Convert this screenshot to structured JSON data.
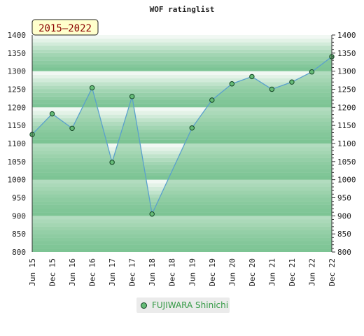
{
  "chart_data": {
    "type": "area",
    "title": "WOF ratinglist",
    "badge": "2015–2022",
    "categories": [
      "Jun 15",
      "Dec 15",
      "Jun 16",
      "Dec 16",
      "Jun 17",
      "Dec 17",
      "Jun 18",
      "Dec 18",
      "Jun 19",
      "Dec 19",
      "Jun 20",
      "Dec 20",
      "Jun 21",
      "Dec 21",
      "Jun 22",
      "Dec 22"
    ],
    "series": [
      {
        "name": "FUJIWARA Shinichi",
        "values": [
          1125,
          1182,
          1142,
          1254,
          1048,
          1230,
          905,
          null,
          1143,
          1220,
          1265,
          1285,
          1250,
          1270,
          1298,
          1340
        ]
      }
    ],
    "ylim": [
      800,
      1400
    ],
    "yticks": [
      800,
      850,
      900,
      950,
      1000,
      1050,
      1100,
      1150,
      1200,
      1250,
      1300,
      1350,
      1400
    ],
    "xlabel": "",
    "ylabel": "",
    "grid": true,
    "legend_position": "bottom"
  },
  "colors": {
    "line": "#5aa0cc",
    "marker_fill": "#66bb77",
    "marker_stroke": "#114422",
    "fill": "#7ec593",
    "badge_bg": "#ffffcc",
    "badge_text": "#8b0000"
  }
}
